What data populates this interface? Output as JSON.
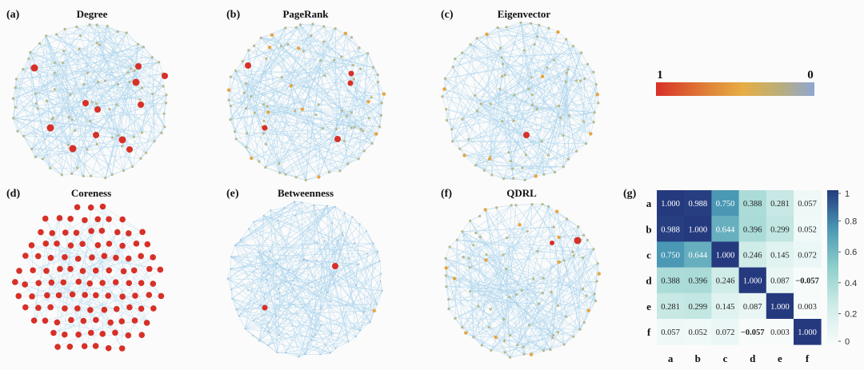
{
  "colorbar": {
    "max_label": "1",
    "min_label": "0",
    "colors": [
      "#d73027",
      "#e0883a",
      "#e7ad45",
      "#b9ae7a",
      "#8fa6d4"
    ]
  },
  "network_panels": [
    {
      "letter": "(a)",
      "title": "Degree",
      "highlight_count": 11
    },
    {
      "letter": "(b)",
      "title": "PageRank",
      "highlight_count": 5
    },
    {
      "letter": "(c)",
      "title": "Eigenvector",
      "highlight_count": 1
    },
    {
      "letter": "(d)",
      "title": "Coreness",
      "highlight_count": 100
    },
    {
      "letter": "(e)",
      "title": "Betweenness",
      "highlight_count": 2
    },
    {
      "letter": "(f)",
      "title": "QDRL",
      "highlight_count": 2
    }
  ],
  "heatmap_panel": {
    "letter": "(g)"
  },
  "chart_data": {
    "type": "heatmap",
    "row_labels": [
      "a",
      "b",
      "c",
      "d",
      "e",
      "f"
    ],
    "col_labels": [
      "a",
      "b",
      "c",
      "d",
      "e",
      "f"
    ],
    "cells": [
      [
        "1.000",
        "0.988",
        "0.750",
        "0.388",
        "0.281",
        "0.057"
      ],
      [
        "0.988",
        "1.000",
        "0.644",
        "0.396",
        "0.299",
        "0.052"
      ],
      [
        "0.750",
        "0.644",
        "1.000",
        "0.246",
        "0.145",
        "0.072"
      ],
      [
        "0.388",
        "0.396",
        "0.246",
        "1.000",
        "0.087",
        "−0.057"
      ],
      [
        "0.281",
        "0.299",
        "0.145",
        "0.087",
        "1.000",
        "0.003"
      ],
      [
        "0.057",
        "0.052",
        "0.072",
        "−0.057",
        "0.003",
        "1.000"
      ]
    ],
    "colorbar_ticks": [
      "1",
      "0.8",
      "0.6",
      "0.4",
      "0.2",
      "0"
    ],
    "range": [
      0,
      1
    ],
    "colors": [
      "#f7fcfb",
      "#cfece8",
      "#8fcfcb",
      "#4a98b4",
      "#253a7e"
    ]
  }
}
